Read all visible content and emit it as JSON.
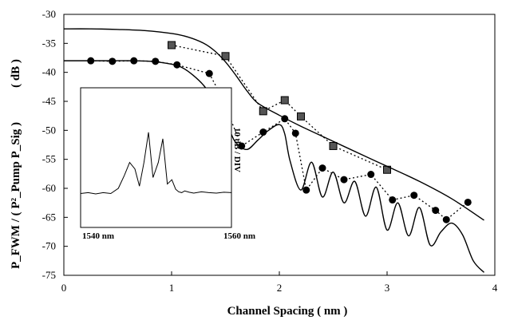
{
  "chart_data": {
    "type": "line",
    "xlabel": "Channel Spacing ( nm )",
    "ylabel": "P_FWM / ( P²_Pump P_Sig )",
    "ylabel_unit": "( dB )",
    "xlim": [
      0,
      4
    ],
    "ylim": [
      -75,
      -30
    ],
    "xticks": [
      "0",
      "1",
      "2",
      "3",
      "4"
    ],
    "yticks": [
      "-30",
      "-35",
      "-40",
      "-45",
      "-50",
      "-55",
      "-60",
      "-65",
      "-70",
      "-75"
    ],
    "series": [
      {
        "marker": "square",
        "style": "dotted",
        "x": [
          1.0,
          1.5,
          1.85,
          2.05,
          2.2,
          2.5,
          3.0
        ],
        "y": [
          -35.3,
          -37.2,
          -46.7,
          -44.8,
          -47.6,
          -52.7,
          -56.8
        ]
      },
      {
        "marker": "circle",
        "style": "dotted",
        "x": [
          0.25,
          0.45,
          0.65,
          0.85,
          1.05,
          1.35,
          1.45,
          1.65,
          1.85,
          2.05,
          2.15,
          2.25,
          2.4,
          2.6,
          2.85,
          3.05,
          3.25,
          3.45,
          3.55,
          3.75
        ],
        "y": [
          -38.0,
          -38.1,
          -38.0,
          -38.1,
          -38.7,
          -40.2,
          -43.7,
          -52.7,
          -50.3,
          -48.0,
          -50.5,
          -60.3,
          -56.5,
          -58.5,
          -57.6,
          -62.0,
          -61.2,
          -63.8,
          -65.4,
          -62.4
        ]
      },
      {
        "style": "solid",
        "x": [
          0,
          0.25,
          0.5,
          0.75,
          1.0,
          1.15,
          1.3,
          1.4,
          1.5,
          1.6,
          1.7,
          1.8,
          2.0,
          2.2,
          2.5,
          2.8,
          3.0,
          3.3,
          3.6,
          3.9
        ],
        "y": [
          -32.5,
          -32.5,
          -32.6,
          -32.8,
          -33.3,
          -33.9,
          -35.0,
          -36.3,
          -38.2,
          -40.6,
          -43.2,
          -45.3,
          -47.4,
          -49.3,
          -51.9,
          -54.5,
          -56.2,
          -58.8,
          -61.8,
          -65.5
        ]
      },
      {
        "style": "solid",
        "x": [
          0,
          0.2,
          0.4,
          0.6,
          0.8,
          1.0,
          1.1,
          1.2,
          1.3,
          1.4,
          1.5,
          1.55,
          1.6,
          1.7,
          1.8,
          1.9,
          2.0,
          2.05,
          2.1,
          2.2,
          2.3,
          2.4,
          2.5,
          2.6,
          2.7,
          2.8,
          2.9,
          3.0,
          3.1,
          3.2,
          3.3,
          3.4,
          3.5,
          3.6,
          3.7,
          3.8,
          3.9
        ],
        "y": [
          -38.0,
          -38.0,
          -38.0,
          -38.0,
          -38.1,
          -38.6,
          -39.2,
          -40.5,
          -42.3,
          -45.0,
          -48.5,
          -50.5,
          -52.2,
          -53.3,
          -51.7,
          -50.0,
          -49.0,
          -50.6,
          -55.3,
          -60.3,
          -55.5,
          -61.5,
          -57.2,
          -62.5,
          -58.8,
          -64.8,
          -59.8,
          -67.2,
          -62.5,
          -68.2,
          -63.3,
          -69.8,
          -67.5,
          -66.0,
          -68.0,
          -72.5,
          -74.5
        ]
      }
    ],
    "inset": {
      "type": "spectrum",
      "x_start_label": "1540 nm",
      "x_end_label": "1560 nm",
      "scale_label": "10 dB / DIV",
      "spectrum": {
        "x": [
          1540,
          1541,
          1542,
          1543,
          1544,
          1545,
          1545.8,
          1546.5,
          1547.2,
          1547.8,
          1548.4,
          1549.0,
          1549.6,
          1550.3,
          1550.9,
          1551.5,
          1552.1,
          1552.6,
          1553.0,
          1553.4,
          1553.8,
          1554.4,
          1555,
          1556,
          1557,
          1558,
          1559,
          1560
        ],
        "y": [
          -66.2,
          -66.0,
          -66.3,
          -66.0,
          -66.2,
          -65.0,
          -62.0,
          -59.0,
          -60.5,
          -64.5,
          -59.0,
          -52.0,
          -62.5,
          -59.0,
          -53.5,
          -64.0,
          -63.0,
          -65.2,
          -65.8,
          -66.0,
          -65.6,
          -65.9,
          -66.1,
          -65.8,
          -66.0,
          -66.1,
          -65.9,
          -66.0
        ]
      }
    }
  }
}
